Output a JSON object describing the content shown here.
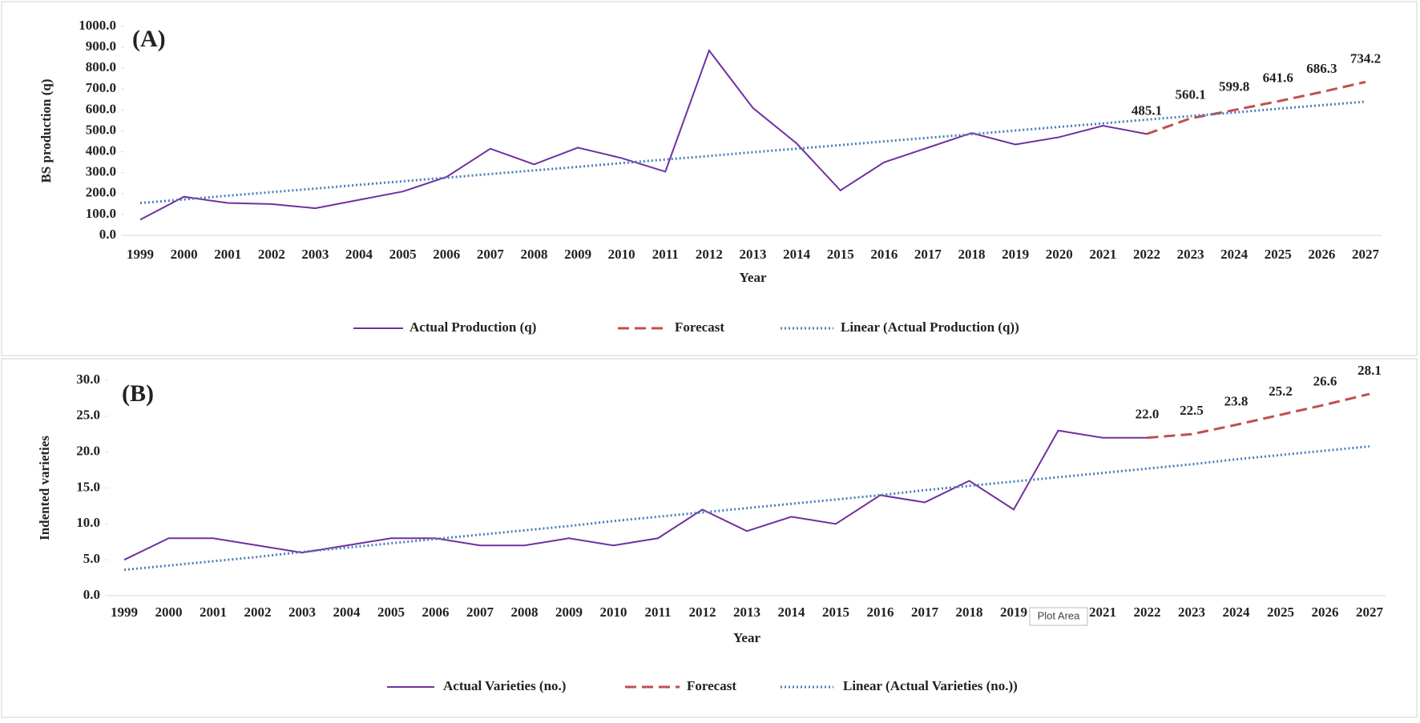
{
  "chart_data": [
    {
      "type": "line",
      "title": "(A)",
      "x_label": "Year",
      "y_label": "BS production (q)",
      "categories": [
        "1999",
        "2000",
        "2001",
        "2002",
        "2003",
        "2004",
        "2005",
        "2006",
        "2007",
        "2008",
        "2009",
        "2010",
        "2011",
        "2012",
        "2013",
        "2014",
        "2015",
        "2016",
        "2017",
        "2018",
        "2019",
        "2020",
        "2021",
        "2022",
        "2023",
        "2024",
        "2025",
        "2026",
        "2027"
      ],
      "ylim": [
        0,
        1000
      ],
      "yticks": [
        {
          "value": 0,
          "label": "0.0"
        },
        {
          "value": 100,
          "label": "100.0"
        },
        {
          "value": 200,
          "label": "200.0"
        },
        {
          "value": 300,
          "label": "300.0"
        },
        {
          "value": 400,
          "label": "400.0"
        },
        {
          "value": 500,
          "label": "500.0"
        },
        {
          "value": 600,
          "label": "600.0"
        },
        {
          "value": 700,
          "label": "700.0"
        },
        {
          "value": 800,
          "label": "800.0"
        },
        {
          "value": 900,
          "label": "900.0"
        },
        {
          "value": 1000,
          "label": "1000.0"
        }
      ],
      "grid": false,
      "legend": "bottom",
      "series": [
        {
          "name": "Actual Production (q)",
          "color": "#7030a0",
          "dash": "solid",
          "values": [
            75,
            185,
            155,
            150,
            130,
            170,
            210,
            280,
            415,
            340,
            420,
            370,
            305,
            885,
            610,
            440,
            215,
            350,
            420,
            490,
            435,
            470,
            525,
            485.1,
            null,
            null,
            null,
            null,
            null
          ]
        },
        {
          "name": "Forecast",
          "color": "#c0504d",
          "dash": "dashed",
          "values": [
            null,
            null,
            null,
            null,
            null,
            null,
            null,
            null,
            null,
            null,
            null,
            null,
            null,
            null,
            null,
            null,
            null,
            null,
            null,
            null,
            null,
            null,
            null,
            485.1,
            560.1,
            599.8,
            641.6,
            686.3,
            734.2
          ],
          "value_labels": [
            null,
            null,
            null,
            null,
            null,
            null,
            null,
            null,
            null,
            null,
            null,
            null,
            null,
            null,
            null,
            null,
            null,
            null,
            null,
            null,
            null,
            null,
            null,
            "485.1",
            "560.1",
            "599.8",
            "641.6",
            "686.3",
            "734.2"
          ]
        },
        {
          "name": "Linear (Actual Production (q))",
          "color": "#4a7ebb",
          "dash": "dotted",
          "values": [
            155,
            172,
            190,
            207,
            224,
            242,
            259,
            276,
            294,
            311,
            328,
            346,
            363,
            380,
            398,
            415,
            432,
            450,
            467,
            484,
            502,
            519,
            536,
            554,
            571,
            588,
            606,
            623,
            640
          ]
        }
      ]
    },
    {
      "type": "line",
      "title": "(B)",
      "x_label": "Year",
      "y_label": "Indented varieties",
      "categories": [
        "1999",
        "2000",
        "2001",
        "2002",
        "2003",
        "2004",
        "2005",
        "2006",
        "2007",
        "2008",
        "2009",
        "2010",
        "2011",
        "2012",
        "2013",
        "2014",
        "2015",
        "2016",
        "2017",
        "2018",
        "2019",
        "2020",
        "2021",
        "2022",
        "2023",
        "2024",
        "2025",
        "2026",
        "2027"
      ],
      "ylim": [
        0,
        30
      ],
      "yticks": [
        {
          "value": 0,
          "label": "0.0"
        },
        {
          "value": 5,
          "label": "5.0"
        },
        {
          "value": 10,
          "label": "10.0"
        },
        {
          "value": 15,
          "label": "15.0"
        },
        {
          "value": 20,
          "label": "20.0"
        },
        {
          "value": 25,
          "label": "25.0"
        },
        {
          "value": 30,
          "label": "30.0"
        }
      ],
      "grid": false,
      "legend": "bottom",
      "tooltip": "Plot Area",
      "series": [
        {
          "name": "Actual Varieties (no.)",
          "color": "#7030a0",
          "dash": "solid",
          "values": [
            5,
            8,
            8,
            7,
            6,
            7,
            8,
            8,
            7,
            7,
            8,
            7,
            8,
            12,
            9,
            11,
            10,
            14,
            13,
            16,
            12,
            23,
            22,
            22,
            null,
            null,
            null,
            null,
            null
          ]
        },
        {
          "name": "Forecast",
          "color": "#c0504d",
          "dash": "dashed",
          "values": [
            null,
            null,
            null,
            null,
            null,
            null,
            null,
            null,
            null,
            null,
            null,
            null,
            null,
            null,
            null,
            null,
            null,
            null,
            null,
            null,
            null,
            null,
            null,
            22.0,
            22.5,
            23.8,
            25.2,
            26.6,
            28.1
          ],
          "value_labels": [
            null,
            null,
            null,
            null,
            null,
            null,
            null,
            null,
            null,
            null,
            null,
            null,
            null,
            null,
            null,
            null,
            null,
            null,
            null,
            null,
            null,
            null,
            null,
            "22.0",
            "22.5",
            "23.8",
            "25.2",
            "26.6",
            "28.1"
          ]
        },
        {
          "name": "Linear (Actual Varieties (no.))",
          "color": "#4a7ebb",
          "dash": "dotted",
          "values": [
            3.6,
            4.2,
            4.8,
            5.4,
            6.1,
            6.7,
            7.3,
            7.9,
            8.5,
            9.1,
            9.7,
            10.4,
            11.0,
            11.6,
            12.2,
            12.8,
            13.4,
            14.0,
            14.7,
            15.3,
            15.9,
            16.5,
            17.1,
            17.7,
            18.3,
            19.0,
            19.6,
            20.2,
            20.8
          ]
        }
      ]
    }
  ]
}
